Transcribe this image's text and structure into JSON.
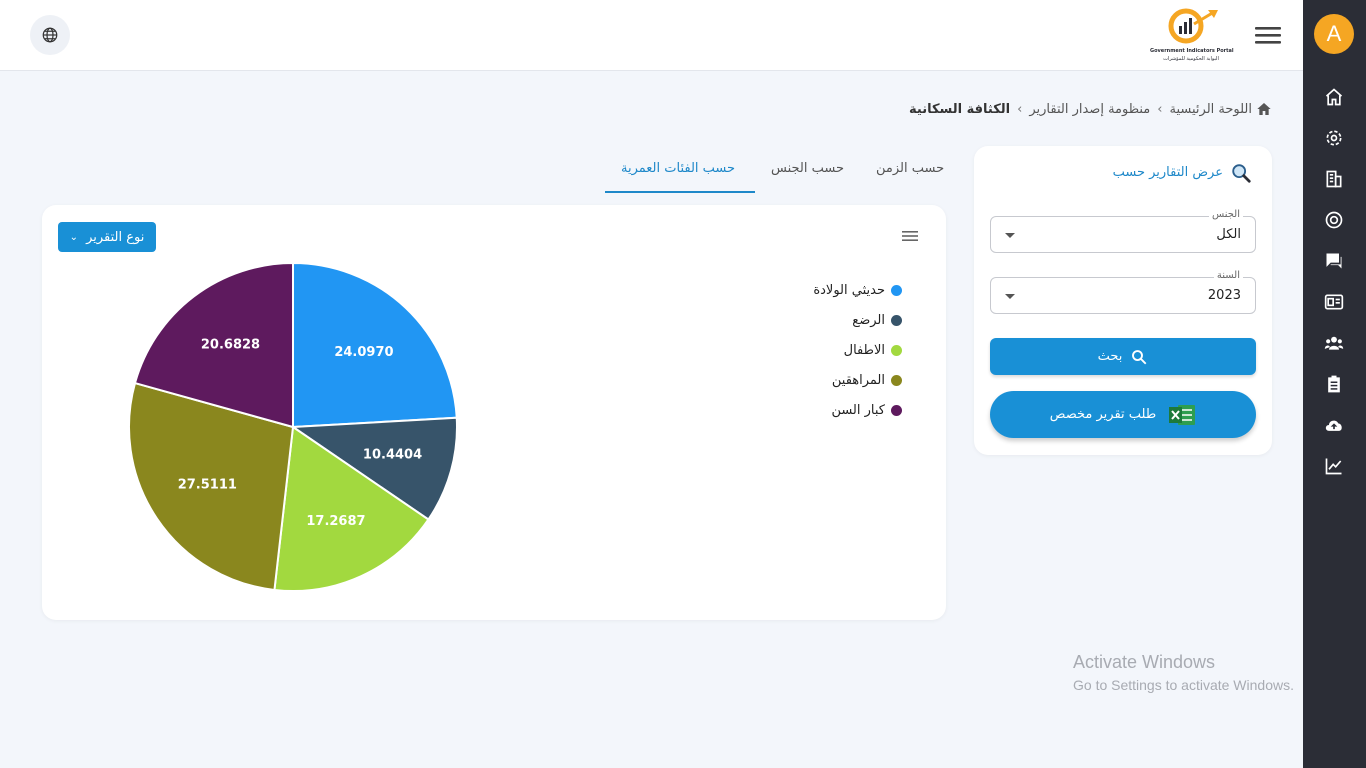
{
  "sidebar": {
    "avatar_letter": "A",
    "icons": [
      "home-icon",
      "settings-icon",
      "buildings-icon",
      "target-icon",
      "chat-icon",
      "id-card-icon",
      "users-icon",
      "clipboard-icon",
      "cloud-upload-icon",
      "chart-line-icon"
    ]
  },
  "header": {
    "logo_line1": "Government Indicators Portal",
    "logo_line2": "البوابة الحكومية للمؤشرات"
  },
  "breadcrumb": {
    "home": "اللوحة الرئيسية",
    "section": "منظومة إصدار التقارير",
    "current": "الكثافة السكانية"
  },
  "filters": {
    "title": "عرض التقارير حسب",
    "gender": {
      "label": "الجنس",
      "value": "الكل"
    },
    "year": {
      "label": "السنة",
      "value": "2023"
    },
    "search_label": "بحث",
    "request_label": "طلب تقرير مخصص"
  },
  "tabs": {
    "by_time": "حسب الزمن",
    "by_gender": "حسب الجنس",
    "by_age": "حسب الفئات العمرية"
  },
  "report_type_label": "نوع التقرير",
  "chart_data": {
    "type": "pie",
    "title": "",
    "categories": [
      "حديثي الولادة",
      "الرضع",
      "الاطفال",
      "المراهقين",
      "كبار السن"
    ],
    "values": [
      24.097,
      10.4404,
      17.2687,
      27.5111,
      20.6828
    ],
    "value_labels": [
      "24.0970",
      "10.4404",
      "17.2687",
      "27.5111",
      "20.6828"
    ],
    "colors": [
      "#2196f3",
      "#37546a",
      "#a2d93f",
      "#8a871e",
      "#5e1a5e"
    ],
    "legend": "top-right"
  },
  "watermark": {
    "title": "Activate Windows",
    "subtitle": "Go to Settings to activate Windows."
  }
}
